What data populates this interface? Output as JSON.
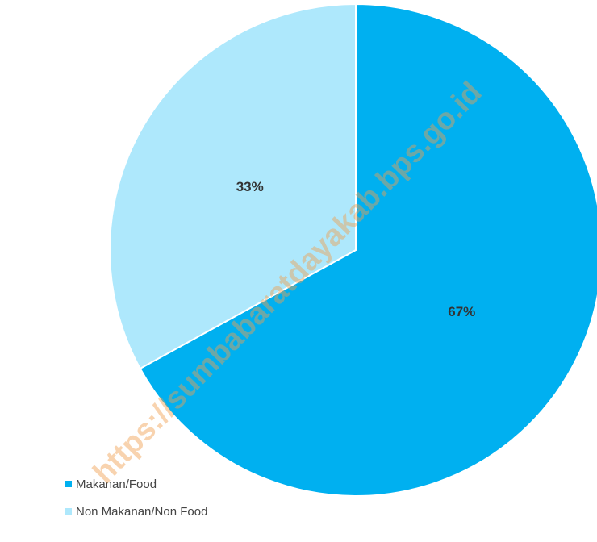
{
  "chart_data": {
    "type": "pie",
    "categories": [
      "Makanan/Food",
      "Non Makanan/Non Food"
    ],
    "values": [
      67,
      33
    ],
    "value_labels": [
      "67%",
      "33%"
    ],
    "colors": [
      "#00b0f0",
      "#aee8fc"
    ],
    "legend": "bottom-left",
    "watermark": "https://sumbabaratdayakab.bps.go.id"
  }
}
